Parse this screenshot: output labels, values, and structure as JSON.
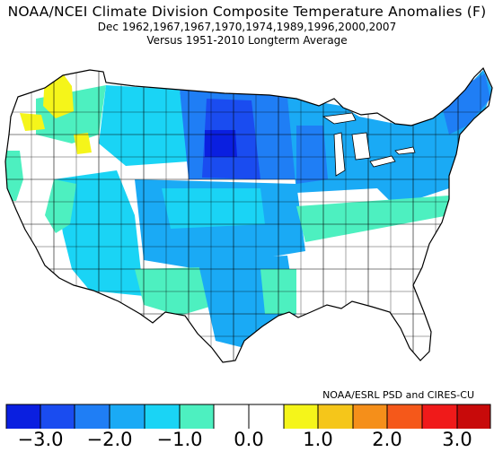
{
  "title": "NOAA/NCEI Climate Division Composite Temperature Anomalies (F)",
  "subtitle": "Dec   1962,1967,1967,1970,1974,1989,1996,2000,2007",
  "subtitle2": "Versus 1951-2010 Longterm Average",
  "credit": "NOAA/ESRL PSD and CIRES-CU",
  "colors": {
    "c_m35": "#0a1fe0",
    "c_m30": "#1a4cf0",
    "c_m25": "#1f7ef5",
    "c_m20": "#1aaaf5",
    "c_m15": "#1ad4f5",
    "c_m10": "#4df0c0",
    "c_0a": "#ffffff",
    "c_0b": "#ffffff",
    "c_p10": "#f5f51a",
    "c_p15": "#f5c61a",
    "c_p20": "#f58f1a",
    "c_p25": "#f5581a",
    "c_p30": "#f01a1a",
    "c_p35": "#c80a0a"
  },
  "colorbar": {
    "tick_labels": [
      "−3.0",
      "−2.0",
      "−1.0",
      "0.0",
      "1.0",
      "2.0",
      "3.0"
    ]
  }
}
